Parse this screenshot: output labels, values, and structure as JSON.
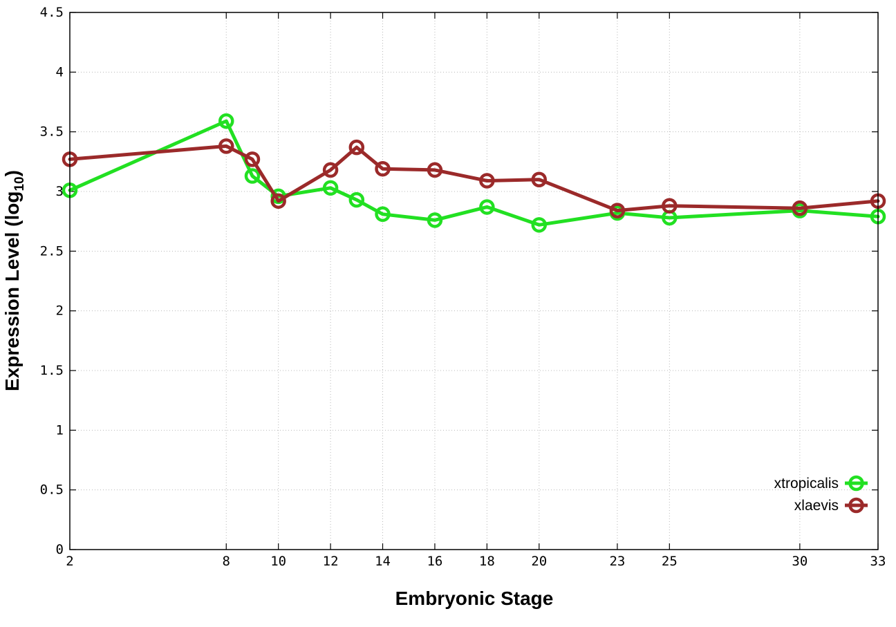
{
  "chart_data": {
    "type": "line",
    "xlabel": "Embryonic Stage",
    "ylabel": "Expression Level (log",
    "ylabel_sub": "10",
    "ylabel_close": ")",
    "xlim": [
      2,
      33
    ],
    "ylim": [
      0,
      4.5
    ],
    "xticks": [
      2,
      8,
      10,
      12,
      14,
      16,
      18,
      20,
      23,
      25,
      30,
      33
    ],
    "yticks": [
      0,
      0.5,
      1,
      1.5,
      2,
      2.5,
      3,
      3.5,
      4,
      4.5
    ],
    "ytick_labels": [
      "0",
      "0.5",
      "1",
      "1.5",
      "2",
      "2.5",
      "3",
      "3.5",
      "4",
      "4.5"
    ],
    "grid": true,
    "legend_position": "bottom-right",
    "series": [
      {
        "name": "xtropicalis",
        "color": "#22e022",
        "x": [
          2,
          8,
          9,
          10,
          12,
          13,
          14,
          16,
          18,
          20,
          23,
          25,
          30,
          33
        ],
        "y": [
          3.01,
          3.59,
          3.13,
          2.96,
          3.03,
          2.93,
          2.81,
          2.76,
          2.87,
          2.72,
          2.82,
          2.78,
          2.84,
          2.79
        ]
      },
      {
        "name": "xlaevis",
        "color": "#9b2a2a",
        "x": [
          2,
          8,
          9,
          10,
          12,
          13,
          14,
          16,
          18,
          20,
          23,
          25,
          30,
          33
        ],
        "y": [
          3.27,
          3.38,
          3.27,
          2.92,
          3.18,
          3.37,
          3.19,
          3.18,
          3.09,
          3.1,
          2.84,
          2.88,
          2.86,
          2.92
        ]
      }
    ]
  }
}
